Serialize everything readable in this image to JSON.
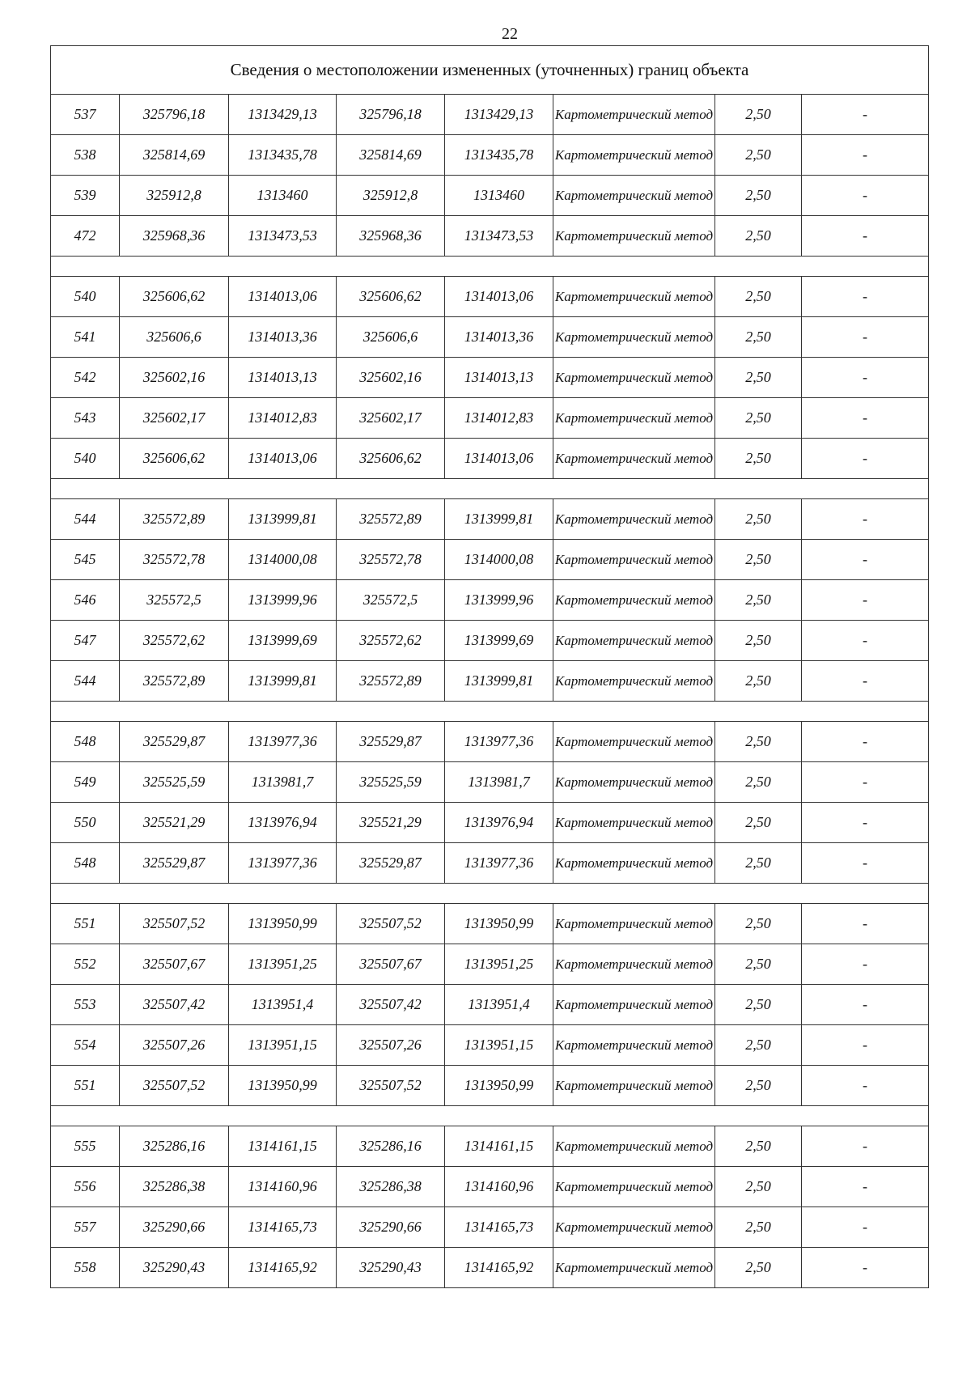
{
  "page_number": "22",
  "table": {
    "title": "Сведения о местоположении измененных (уточненных) границ объекта",
    "groups": [
      [
        [
          "537",
          "325796,18",
          "1313429,13",
          "325796,18",
          "1313429,13",
          "Картометрический метод",
          "2,50",
          "-"
        ],
        [
          "538",
          "325814,69",
          "1313435,78",
          "325814,69",
          "1313435,78",
          "Картометрический метод",
          "2,50",
          "-"
        ],
        [
          "539",
          "325912,8",
          "1313460",
          "325912,8",
          "1313460",
          "Картометрический метод",
          "2,50",
          "-"
        ],
        [
          "472",
          "325968,36",
          "1313473,53",
          "325968,36",
          "1313473,53",
          "Картометрический метод",
          "2,50",
          "-"
        ]
      ],
      [
        [
          "540",
          "325606,62",
          "1314013,06",
          "325606,62",
          "1314013,06",
          "Картометрический метод",
          "2,50",
          "-"
        ],
        [
          "541",
          "325606,6",
          "1314013,36",
          "325606,6",
          "1314013,36",
          "Картометрический метод",
          "2,50",
          "-"
        ],
        [
          "542",
          "325602,16",
          "1314013,13",
          "325602,16",
          "1314013,13",
          "Картометрический метод",
          "2,50",
          "-"
        ],
        [
          "543",
          "325602,17",
          "1314012,83",
          "325602,17",
          "1314012,83",
          "Картометрический метод",
          "2,50",
          "-"
        ],
        [
          "540",
          "325606,62",
          "1314013,06",
          "325606,62",
          "1314013,06",
          "Картометрический метод",
          "2,50",
          "-"
        ]
      ],
      [
        [
          "544",
          "325572,89",
          "1313999,81",
          "325572,89",
          "1313999,81",
          "Картометрический метод",
          "2,50",
          "-"
        ],
        [
          "545",
          "325572,78",
          "1314000,08",
          "325572,78",
          "1314000,08",
          "Картометрический метод",
          "2,50",
          "-"
        ],
        [
          "546",
          "325572,5",
          "1313999,96",
          "325572,5",
          "1313999,96",
          "Картометрический метод",
          "2,50",
          "-"
        ],
        [
          "547",
          "325572,62",
          "1313999,69",
          "325572,62",
          "1313999,69",
          "Картометрический метод",
          "2,50",
          "-"
        ],
        [
          "544",
          "325572,89",
          "1313999,81",
          "325572,89",
          "1313999,81",
          "Картометрический метод",
          "2,50",
          "-"
        ]
      ],
      [
        [
          "548",
          "325529,87",
          "1313977,36",
          "325529,87",
          "1313977,36",
          "Картометрический метод",
          "2,50",
          "-"
        ],
        [
          "549",
          "325525,59",
          "1313981,7",
          "325525,59",
          "1313981,7",
          "Картометрический метод",
          "2,50",
          "-"
        ],
        [
          "550",
          "325521,29",
          "1313976,94",
          "325521,29",
          "1313976,94",
          "Картометрический метод",
          "2,50",
          "-"
        ],
        [
          "548",
          "325529,87",
          "1313977,36",
          "325529,87",
          "1313977,36",
          "Картометрический метод",
          "2,50",
          "-"
        ]
      ],
      [
        [
          "551",
          "325507,52",
          "1313950,99",
          "325507,52",
          "1313950,99",
          "Картометрический метод",
          "2,50",
          "-"
        ],
        [
          "552",
          "325507,67",
          "1313951,25",
          "325507,67",
          "1313951,25",
          "Картометрический метод",
          "2,50",
          "-"
        ],
        [
          "553",
          "325507,42",
          "1313951,4",
          "325507,42",
          "1313951,4",
          "Картометрический метод",
          "2,50",
          "-"
        ],
        [
          "554",
          "325507,26",
          "1313951,15",
          "325507,26",
          "1313951,15",
          "Картометрический метод",
          "2,50",
          "-"
        ],
        [
          "551",
          "325507,52",
          "1313950,99",
          "325507,52",
          "1313950,99",
          "Картометрический метод",
          "2,50",
          "-"
        ]
      ],
      [
        [
          "555",
          "325286,16",
          "1314161,15",
          "325286,16",
          "1314161,15",
          "Картометрический метод",
          "2,50",
          "-"
        ],
        [
          "556",
          "325286,38",
          "1314160,96",
          "325286,38",
          "1314160,96",
          "Картометрический метод",
          "2,50",
          "-"
        ],
        [
          "557",
          "325290,66",
          "1314165,73",
          "325290,66",
          "1314165,73",
          "Картометрический метод",
          "2,50",
          "-"
        ],
        [
          "558",
          "325290,43",
          "1314165,92",
          "325290,43",
          "1314165,92",
          "Картометрический метод",
          "2,50",
          "-"
        ]
      ]
    ]
  }
}
